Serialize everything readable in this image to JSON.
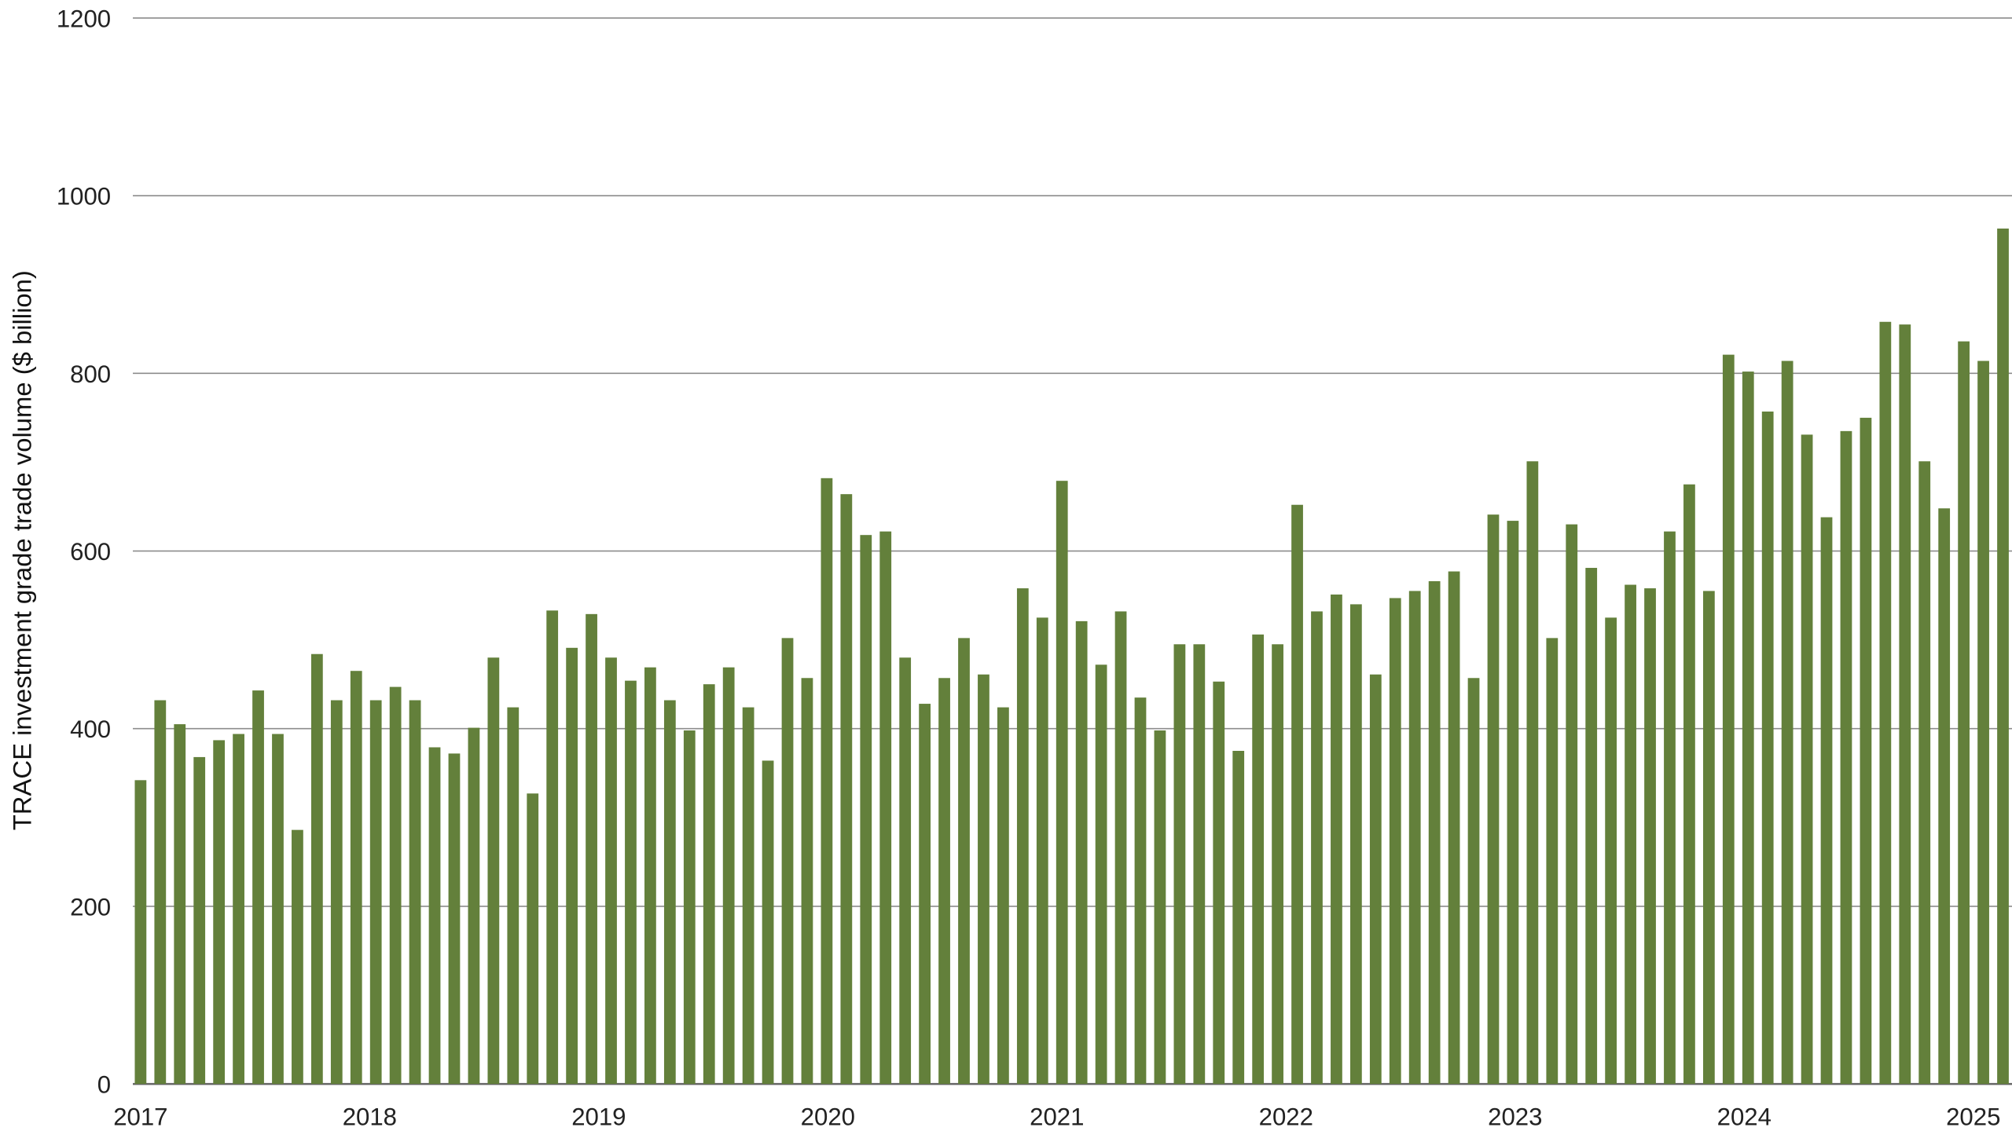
{
  "chart_data": {
    "type": "bar",
    "title": "",
    "xlabel": "",
    "ylabel": "TRACE investment grade trade volume ($ billion)",
    "ylim": [
      0,
      1200
    ],
    "yticks": [
      "0",
      "200",
      "400",
      "600",
      "800",
      "1000",
      "1200"
    ],
    "xtick_labels": [
      "2017",
      "2018",
      "2019",
      "2020",
      "2021",
      "2022",
      "2023",
      "2024",
      "2025"
    ],
    "grid": "horizontal",
    "colors": {
      "bar": "#63803b",
      "grid": "#8c8c8c"
    },
    "values": [
      342,
      432,
      405,
      368,
      387,
      394,
      443,
      394,
      286,
      484,
      432,
      465,
      432,
      447,
      432,
      379,
      372,
      401,
      480,
      424,
      327,
      533,
      491,
      529,
      480,
      454,
      469,
      432,
      398,
      450,
      469,
      424,
      364,
      502,
      457,
      682,
      664,
      618,
      622,
      480,
      428,
      457,
      502,
      461,
      424,
      558,
      525,
      679,
      521,
      472,
      532,
      435,
      398,
      495,
      495,
      453,
      375,
      506,
      495,
      652,
      532,
      551,
      540,
      461,
      547,
      555,
      566,
      577,
      457,
      641,
      634,
      701,
      502,
      630,
      581,
      525,
      562,
      558,
      622,
      675,
      555,
      821,
      802,
      757,
      814,
      731,
      638,
      735,
      750,
      858,
      855,
      701,
      648,
      836,
      814,
      963
    ]
  }
}
